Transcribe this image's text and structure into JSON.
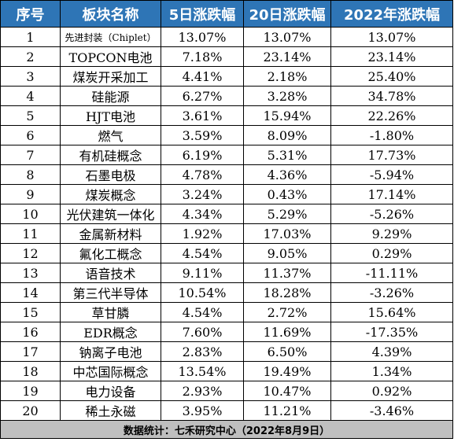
{
  "headers": [
    "序号",
    "板块名称",
    "5日涨跌幅",
    "20日涨跌幅",
    "2022年涨跌幅"
  ],
  "rows": [
    {
      "no": "1",
      "name": "先进封装（Chiplet）",
      "d5": "13.07%",
      "d20": "13.07%",
      "y2022": "13.07%"
    },
    {
      "no": "2",
      "name": "TOPCON电池",
      "d5": "7.18%",
      "d20": "23.14%",
      "y2022": "23.14%"
    },
    {
      "no": "3",
      "name": "煤炭开采加工",
      "d5": "4.41%",
      "d20": "2.18%",
      "y2022": "25.40%"
    },
    {
      "no": "4",
      "name": "硅能源",
      "d5": "6.27%",
      "d20": "3.28%",
      "y2022": "34.78%"
    },
    {
      "no": "5",
      "name": "HJT电池",
      "d5": "3.61%",
      "d20": "15.94%",
      "y2022": "22.26%"
    },
    {
      "no": "6",
      "name": "燃气",
      "d5": "3.59%",
      "d20": "8.09%",
      "y2022": "-1.80%"
    },
    {
      "no": "7",
      "name": "有机硅概念",
      "d5": "6.19%",
      "d20": "5.31%",
      "y2022": "17.73%"
    },
    {
      "no": "8",
      "name": "石墨电极",
      "d5": "4.78%",
      "d20": "4.36%",
      "y2022": "-5.94%"
    },
    {
      "no": "9",
      "name": "煤炭概念",
      "d5": "3.24%",
      "d20": "0.43%",
      "y2022": "17.14%"
    },
    {
      "no": "10",
      "name": "光伏建筑一体化",
      "d5": "4.34%",
      "d20": "5.29%",
      "y2022": "-5.26%"
    },
    {
      "no": "11",
      "name": "金属新材料",
      "d5": "1.92%",
      "d20": "17.03%",
      "y2022": "9.29%"
    },
    {
      "no": "12",
      "name": "氟化工概念",
      "d5": "4.54%",
      "d20": "9.05%",
      "y2022": "0.29%"
    },
    {
      "no": "13",
      "name": "语音技术",
      "d5": "9.11%",
      "d20": "11.37%",
      "y2022": "-11.11%"
    },
    {
      "no": "14",
      "name": "第三代半导体",
      "d5": "10.54%",
      "d20": "18.28%",
      "y2022": "-3.26%"
    },
    {
      "no": "15",
      "name": "草甘膦",
      "d5": "4.54%",
      "d20": "2.72%",
      "y2022": "15.64%"
    },
    {
      "no": "16",
      "name": "EDR概念",
      "d5": "7.60%",
      "d20": "11.69%",
      "y2022": "-17.35%"
    },
    {
      "no": "17",
      "name": "钠离子电池",
      "d5": "2.83%",
      "d20": "6.50%",
      "y2022": "4.39%"
    },
    {
      "no": "18",
      "name": "中芯国际概念",
      "d5": "13.54%",
      "d20": "19.49%",
      "y2022": "1.34%"
    },
    {
      "no": "19",
      "name": "电力设备",
      "d5": "2.93%",
      "d20": "10.47%",
      "y2022": "0.92%"
    },
    {
      "no": "20",
      "name": "稀土永磁",
      "d5": "3.95%",
      "d20": "11.21%",
      "y2022": "-3.46%"
    }
  ],
  "footer": "数据统计：七禾研究中心（2022年8月9日）",
  "colors": {
    "header_bg": "#2e75b6",
    "header_text": "#ffffff",
    "footer_bg": "#bfbfbf"
  }
}
